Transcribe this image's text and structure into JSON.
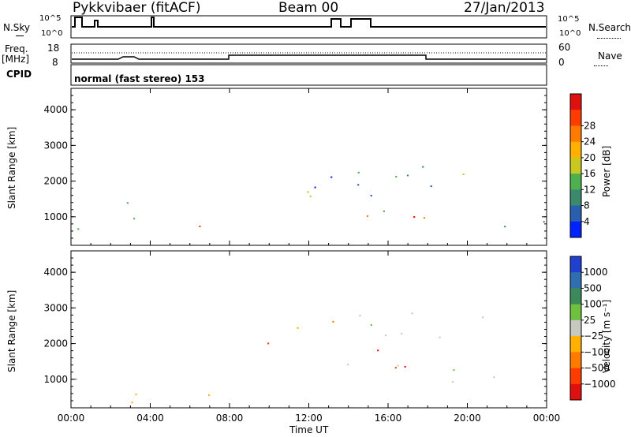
{
  "header": {
    "title": "Pykkvibaer (fitACF)",
    "beam": "Beam 00",
    "date": "27/Jan/2013"
  },
  "top_panels": {
    "nsky_label": "N.Sky",
    "nsearch_label": "N.Search",
    "sky_ticks": [
      "10^5",
      "10^0"
    ],
    "freq_label_1": "Freq.",
    "freq_label_2": "[MHz]",
    "freq_ticks": [
      "18",
      "8"
    ],
    "nave_label": "Nave",
    "nave_ticks": [
      "60",
      "0"
    ],
    "cpid_label": "CPID",
    "cpid_value": "normal (fast stereo) 153"
  },
  "chart_data": [
    {
      "type": "heatmap",
      "title": "",
      "ylabel": "Slant Range [km]",
      "ylim": [
        200,
        4600
      ],
      "yticks": [
        1000,
        2000,
        3000,
        4000
      ],
      "xlim_hours": [
        0,
        24
      ],
      "xtick_labels": [
        "00:00",
        "04:00",
        "08:00",
        "12:00",
        "16:00",
        "20:00",
        "00:00"
      ],
      "colorbar": {
        "label": "Power [dB]",
        "ticks": [
          "4",
          "8",
          "12",
          "16",
          "20",
          "24",
          "28"
        ],
        "colors": [
          "#0022ff",
          "#2a5fb0",
          "#3c8a6e",
          "#4fb04f",
          "#c8c820",
          "#ffb000",
          "#ff7a00",
          "#ff3c00",
          "#e01010"
        ]
      }
    },
    {
      "type": "heatmap",
      "title": "",
      "ylabel": "Slant Range [km]",
      "xlabel": "Time UT",
      "ylim": [
        200,
        4600
      ],
      "yticks": [
        1000,
        2000,
        3000,
        4000
      ],
      "xlim_hours": [
        0,
        24
      ],
      "xtick_labels": [
        "00:00",
        "04:00",
        "08:00",
        "12:00",
        "16:00",
        "20:00",
        "00:00"
      ],
      "colorbar": {
        "label": "Velocity [m s⁻¹]",
        "ticks": [
          "1000",
          "500",
          "100",
          "25",
          "−25",
          "−100",
          "−500",
          "−1000"
        ],
        "colors": [
          "#2040d0",
          "#2f6fb0",
          "#3c8a5a",
          "#70c040",
          "#c8c8c0",
          "#ffb000",
          "#ff7a00",
          "#ff3c00",
          "#e01010"
        ]
      }
    }
  ]
}
